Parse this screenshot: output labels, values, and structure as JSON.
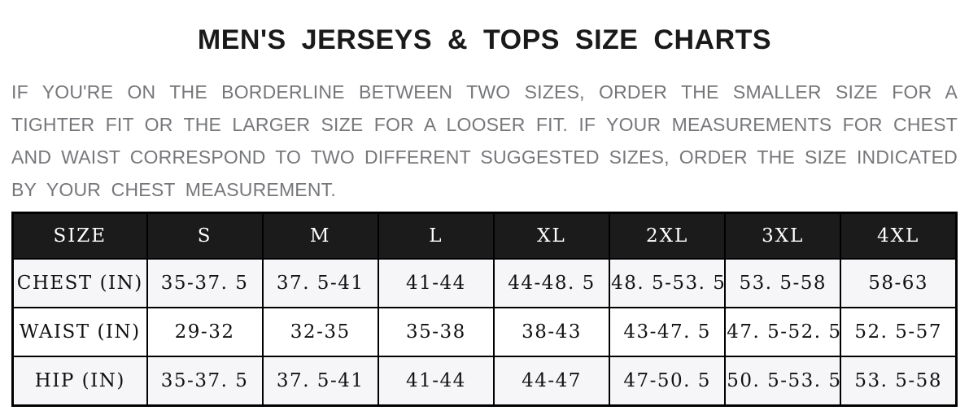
{
  "title": "MEN'S JERSEYS & TOPS SIZE CHARTS",
  "intro": {
    "lines": [
      "IF YOU'RE ON THE BORDERLINE BETWEEN TWO SIZES, ORDER THE SMALLER SIZE FOR A",
      "TIGHTER FIT OR THE LARGER SIZE FOR A LOOSER FIT. IF YOUR MEASUREMENTS FOR CHEST",
      "AND WAIST CORRESPOND TO TWO DIFFERENT SUGGESTED SIZES, ORDER THE SIZE INDICATED",
      "BY YOUR CHEST MEASUREMENT."
    ]
  },
  "chart_data": {
    "type": "table",
    "title": "MEN'S JERSEYS & TOPS SIZE CHARTS",
    "columns": [
      "SIZE",
      "S",
      "M",
      "L",
      "XL",
      "2XL",
      "3XL",
      "4XL"
    ],
    "rows": [
      {
        "label": "CHEST (IN)",
        "values": [
          "35-37. 5",
          "37. 5-41",
          "41-44",
          "44-48. 5",
          "48. 5-53. 5",
          "53. 5-58",
          "58-63"
        ]
      },
      {
        "label": "WAIST (IN)",
        "values": [
          "29-32",
          "32-35",
          "35-38",
          "38-43",
          "43-47. 5",
          "47. 5-52. 5",
          "52. 5-57"
        ]
      },
      {
        "label": "HIP (IN)",
        "values": [
          "35-37. 5",
          "37. 5-41",
          "41-44",
          "44-47",
          "47-50. 5",
          "50. 5-53. 5",
          "53. 5-58"
        ]
      }
    ]
  },
  "colors": {
    "title_text": "#1a1a1a",
    "intro_text": "#76777b",
    "header_bg": "#1b1b1b",
    "header_text": "#ffffff",
    "row_alt_bg": "#f6f6f8",
    "row_plain_bg": "#ffffff",
    "table_border": "#000000"
  }
}
